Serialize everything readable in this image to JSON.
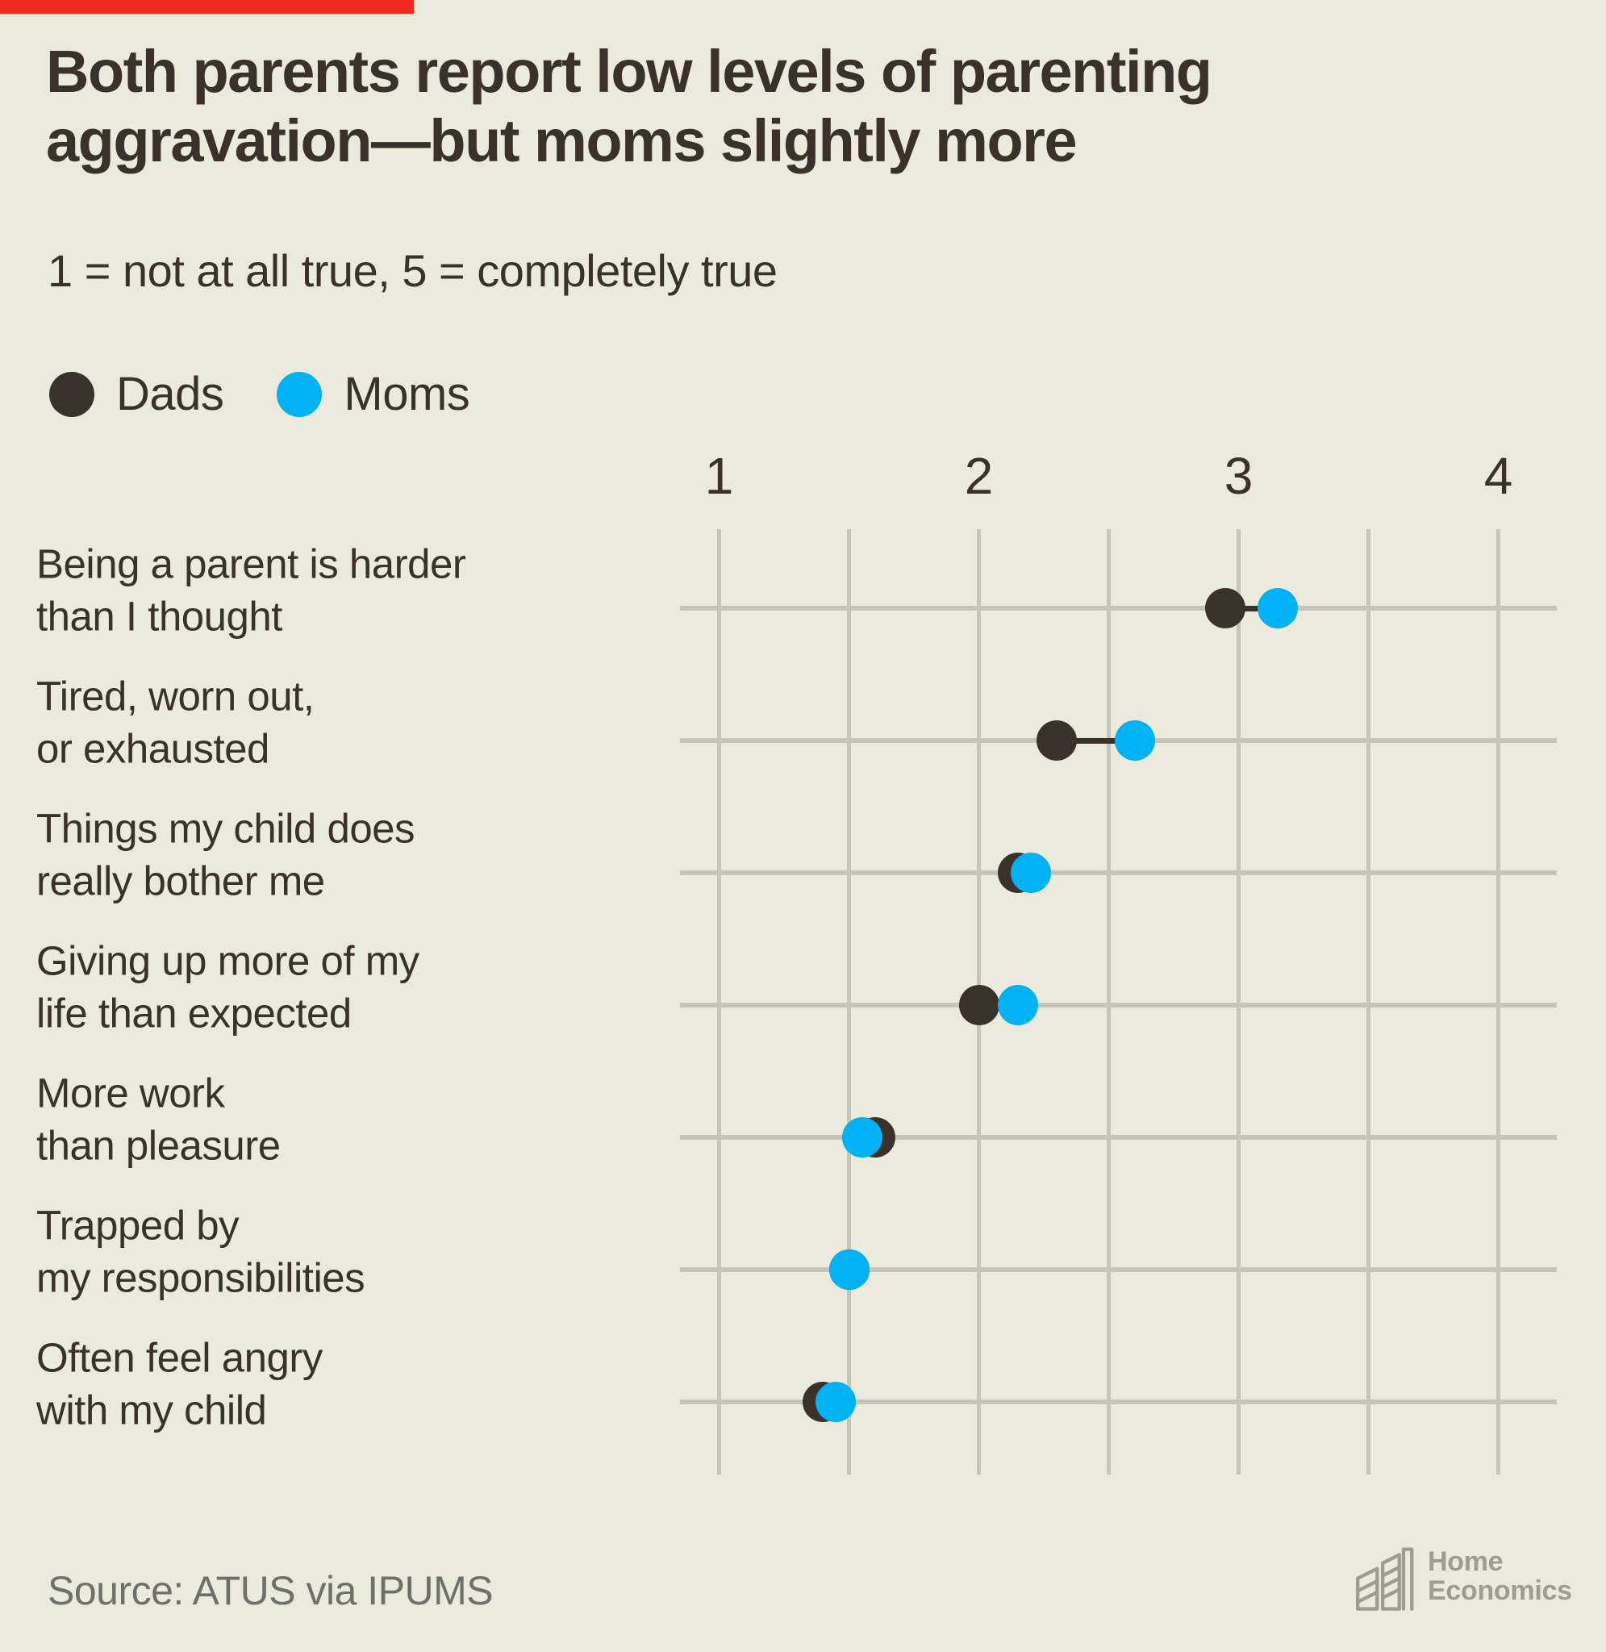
{
  "colors": {
    "accent": "#ee2a1e",
    "background": "#eaeadd",
    "dads": "#39312a",
    "moms": "#00b1f3",
    "grid": "#c6c6b8",
    "source_text": "#70706a",
    "logo_gray": "#9c9c90"
  },
  "header": {
    "title_line1": "Both parents report low levels of parenting",
    "title_line2": "aggravation—but moms slightly more",
    "subtitle": "1 = not at all true, 5 = completely true"
  },
  "legend": {
    "dads_label": "Dads",
    "moms_label": "Moms"
  },
  "chart_data": {
    "type": "scatter",
    "variant": "dumbbell-dot-plot",
    "title": "Both parents report low levels of parenting aggravation—but moms slightly more",
    "subtitle": "1 = not at all true, 5 = completely true",
    "xlabel": "",
    "ylabel": "",
    "x_axis": {
      "range": [
        1,
        4
      ],
      "ticks": [
        1,
        2,
        3,
        4
      ],
      "gridline_step": 0.5,
      "tick_position": "top"
    },
    "grid": true,
    "legend_position": "top-left",
    "categories": [
      [
        "Being a parent is harder",
        "than I thought"
      ],
      [
        "Tired, worn out,",
        "or exhausted"
      ],
      [
        "Things my child does",
        "really bother me"
      ],
      [
        "Giving up more of my",
        "life than expected"
      ],
      [
        "More work",
        "than pleasure"
      ],
      [
        "Trapped by",
        "my responsibilities"
      ],
      [
        "Often feel angry",
        "with my child"
      ]
    ],
    "series": [
      {
        "name": "Dads",
        "color": "#39312a",
        "values": [
          2.95,
          2.3,
          2.15,
          2.0,
          1.6,
          1.5,
          1.4
        ]
      },
      {
        "name": "Moms",
        "color": "#00b1f3",
        "values": [
          3.15,
          2.6,
          2.2,
          2.15,
          1.55,
          1.5,
          1.45
        ]
      }
    ]
  },
  "footer": {
    "source": "Source: ATUS via IPUMS",
    "logo_line1": "Home",
    "logo_line2": "Economics"
  }
}
